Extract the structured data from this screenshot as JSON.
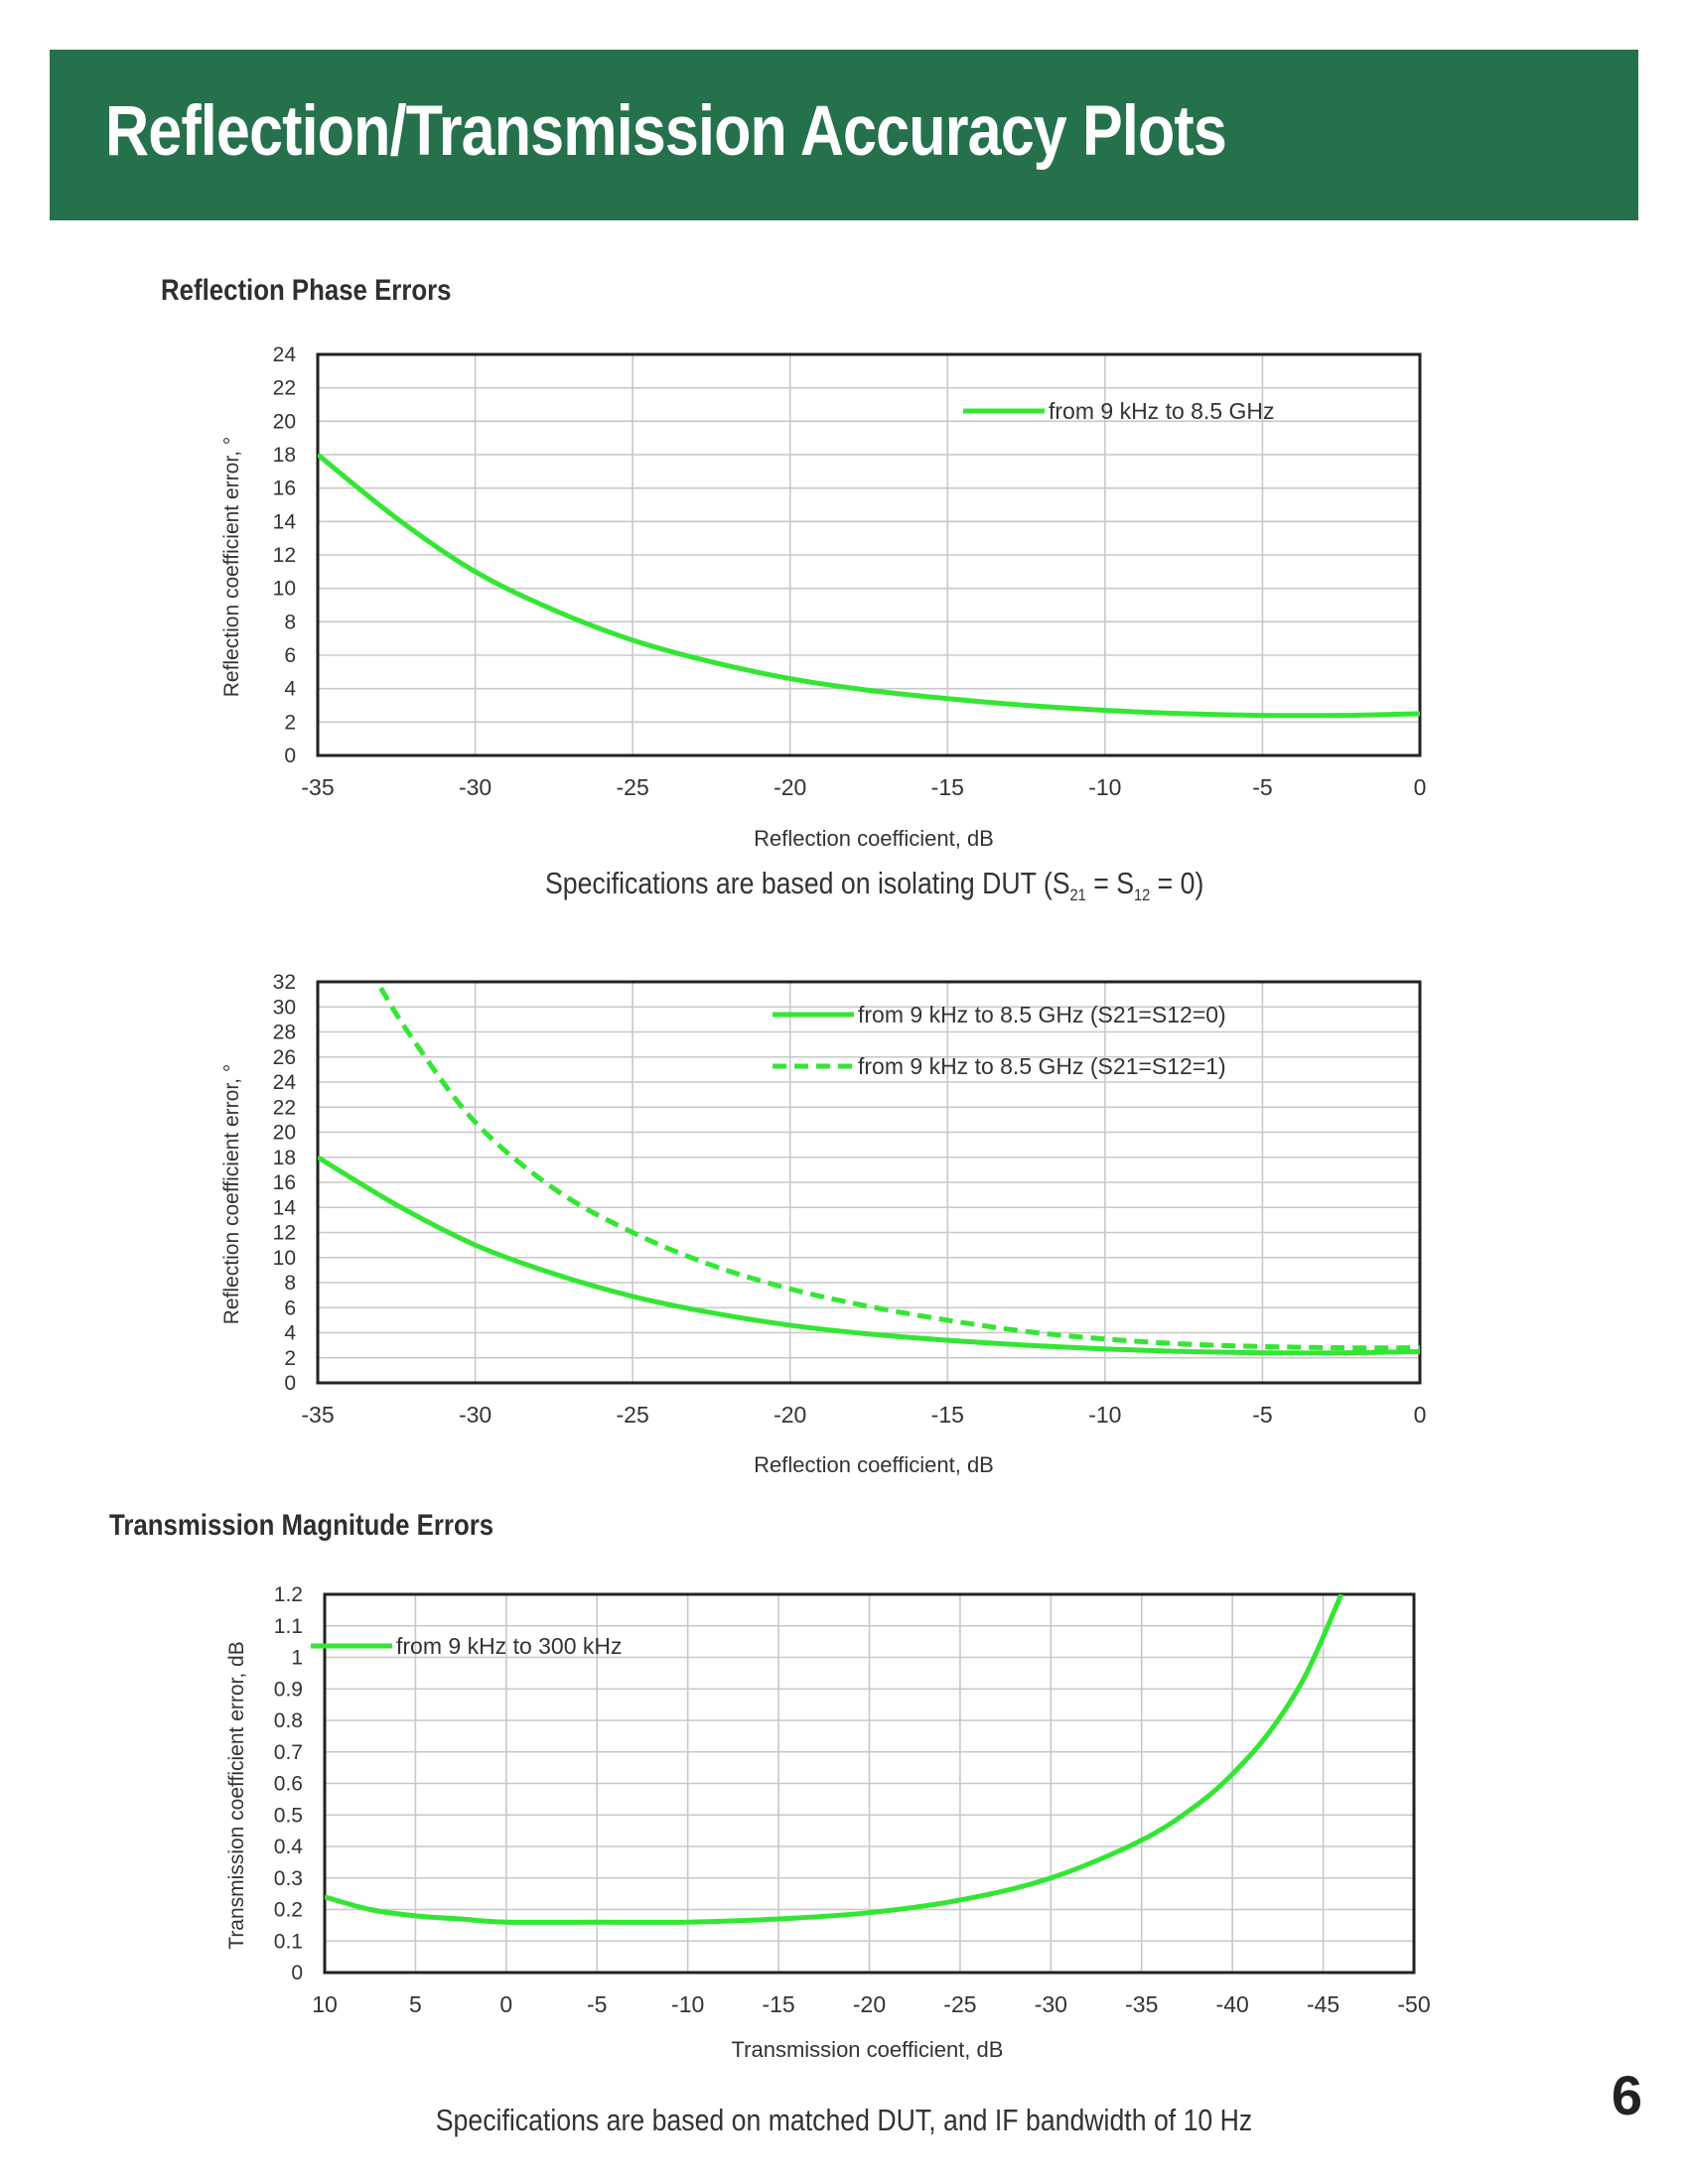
{
  "page": {
    "banner_title": "Reflection/Transmission Accuracy Plots",
    "section1_title": "Reflection Phase Errors",
    "caption1_prefix": "Specifications are based on isolating DUT (S",
    "caption1_sub1": "21",
    "caption1_mid": " = S",
    "caption1_sub2": "12",
    "caption1_suffix": " = 0)",
    "section2_title": "Transmission Magnitude Errors",
    "caption2": "Specifications are based on matched DUT, and IF bandwidth of 10 Hz",
    "page_number": "6",
    "accent_color": "#25714c",
    "line_color": "#33e633"
  },
  "chart_data": [
    {
      "type": "line",
      "xlabel": "Reflection coefficient, dB",
      "ylabel": "Reflection coefficient error, °",
      "xlim": [
        -35,
        0
      ],
      "ylim": [
        0,
        24
      ],
      "x_ticks": [
        -35,
        -30,
        -25,
        -20,
        -15,
        -10,
        -5,
        0
      ],
      "y_ticks": [
        0,
        2,
        4,
        6,
        8,
        10,
        12,
        14,
        16,
        18,
        20,
        22,
        24
      ],
      "grid": true,
      "legend_position": "top-right",
      "series": [
        {
          "name": "from 9 kHz to 8.5 GHz",
          "style": "solid",
          "x": [
            -35,
            -32.5,
            -30,
            -27.5,
            -25,
            -22.5,
            -20,
            -17.5,
            -15,
            -12.5,
            -10,
            -7.5,
            -5,
            -2.5,
            0
          ],
          "y": [
            18,
            14.2,
            11,
            8.7,
            6.9,
            5.6,
            4.6,
            3.9,
            3.4,
            3.0,
            2.7,
            2.5,
            2.4,
            2.4,
            2.5
          ]
        }
      ]
    },
    {
      "type": "line",
      "xlabel": "Reflection coefficient, dB",
      "ylabel": "Reflection coefficient error, °",
      "xlim": [
        -35,
        0
      ],
      "ylim": [
        0,
        32
      ],
      "x_ticks": [
        -35,
        -30,
        -25,
        -20,
        -15,
        -10,
        -5,
        0
      ],
      "y_ticks": [
        0,
        2,
        4,
        6,
        8,
        10,
        12,
        14,
        16,
        18,
        20,
        22,
        24,
        26,
        28,
        30,
        32
      ],
      "grid": true,
      "legend_position": "top-right",
      "series": [
        {
          "name": "from 9 kHz to 8.5 GHz (S21=S12=0)",
          "style": "solid",
          "x": [
            -35,
            -32.5,
            -30,
            -27.5,
            -25,
            -22.5,
            -20,
            -17.5,
            -15,
            -12.5,
            -10,
            -7.5,
            -5,
            -2.5,
            0
          ],
          "y": [
            18,
            14.2,
            11,
            8.7,
            6.9,
            5.6,
            4.6,
            3.9,
            3.4,
            3.0,
            2.7,
            2.5,
            2.4,
            2.4,
            2.5
          ]
        },
        {
          "name": "from 9 kHz to 8.5 GHz (S21=S12=1)",
          "style": "dashed",
          "x": [
            -33,
            -32,
            -30,
            -27.5,
            -25,
            -22.5,
            -20,
            -17.5,
            -15,
            -12.5,
            -10,
            -7.5,
            -5,
            -2.5,
            0
          ],
          "y": [
            31.5,
            27.5,
            20.8,
            15.5,
            12,
            9.4,
            7.5,
            6.1,
            5.0,
            4.1,
            3.5,
            3.1,
            2.9,
            2.8,
            2.8
          ]
        }
      ]
    },
    {
      "type": "line",
      "xlabel": "Transmission coefficient, dB",
      "ylabel": "Transmission coefficient error, dB",
      "xlim": [
        10,
        -50
      ],
      "ylim": [
        0,
        1.2
      ],
      "x_ticks": [
        10,
        5,
        0,
        -5,
        -10,
        -15,
        -20,
        -25,
        -30,
        -35,
        -40,
        -45,
        -50
      ],
      "y_ticks": [
        0,
        0.1,
        0.2,
        0.3,
        0.4,
        0.5,
        0.6,
        0.7,
        0.8,
        0.9,
        1,
        1.1,
        1.2
      ],
      "grid": true,
      "legend_position": "top-left",
      "series": [
        {
          "name": "from 9 kHz to 300 kHz",
          "style": "solid",
          "x": [
            10,
            7.5,
            5,
            2.5,
            0,
            -5,
            -10,
            -15,
            -20,
            -25,
            -30,
            -35,
            -38,
            -40,
            -42,
            -44,
            -46
          ],
          "y": [
            0.24,
            0.2,
            0.18,
            0.17,
            0.16,
            0.16,
            0.16,
            0.17,
            0.19,
            0.23,
            0.3,
            0.42,
            0.53,
            0.63,
            0.76,
            0.94,
            1.2
          ]
        }
      ]
    }
  ]
}
